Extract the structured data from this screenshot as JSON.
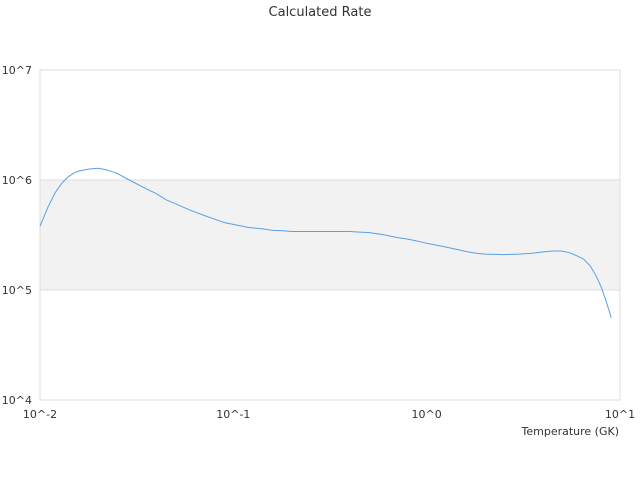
{
  "chart_data": {
    "type": "line",
    "title": "Calculated Rate",
    "xlabel": "Temperature (GK)",
    "ylabel": "",
    "x_scale": "log",
    "y_scale": "log",
    "xlim": [
      0.01,
      10
    ],
    "ylim": [
      10000,
      10000000
    ],
    "x_ticks": [
      {
        "value": 0.01,
        "label": "10^-2"
      },
      {
        "value": 0.1,
        "label": "10^-1"
      },
      {
        "value": 1,
        "label": "10^0"
      },
      {
        "value": 10,
        "label": "10^1"
      }
    ],
    "y_ticks": [
      {
        "value": 10000,
        "label": "10^4"
      },
      {
        "value": 100000,
        "label": "10^5"
      },
      {
        "value": 1000000,
        "label": "10^6"
      },
      {
        "value": 10000000,
        "label": "10^7"
      }
    ],
    "grid": true,
    "band": {
      "from": 100000,
      "to": 1000000,
      "color": "#f2f2f2"
    },
    "series": [
      {
        "color": "#5aa0e0",
        "x": [
          0.01,
          0.011,
          0.012,
          0.013,
          0.014,
          0.015,
          0.016,
          0.018,
          0.02,
          0.022,
          0.025,
          0.03,
          0.035,
          0.04,
          0.045,
          0.05,
          0.06,
          0.07,
          0.08,
          0.09,
          0.1,
          0.12,
          0.14,
          0.16,
          0.18,
          0.2,
          0.25,
          0.3,
          0.35,
          0.4,
          0.45,
          0.5,
          0.6,
          0.7,
          0.8,
          0.9,
          1.0,
          1.2,
          1.4,
          1.6,
          1.8,
          2.0,
          2.5,
          3.0,
          3.5,
          4.0,
          4.5,
          5.0,
          5.5,
          6.0,
          6.5,
          7.0,
          7.5,
          8.0,
          8.5,
          9.0
        ],
        "y": [
          380000,
          570000,
          770000,
          940000,
          1070000,
          1160000,
          1210000,
          1260000,
          1280000,
          1240000,
          1150000,
          970000,
          840000,
          750000,
          660000,
          610000,
          530000,
          480000,
          440000,
          410000,
          395000,
          370000,
          360000,
          348000,
          345000,
          340000,
          340000,
          340000,
          340000,
          340000,
          336000,
          333000,
          318000,
          300000,
          290000,
          278000,
          266000,
          250000,
          236000,
          224000,
          216000,
          212000,
          210000,
          212000,
          216000,
          222000,
          226000,
          226000,
          218000,
          204000,
          190000,
          166000,
          136000,
          106000,
          78000,
          56000
        ]
      }
    ]
  }
}
